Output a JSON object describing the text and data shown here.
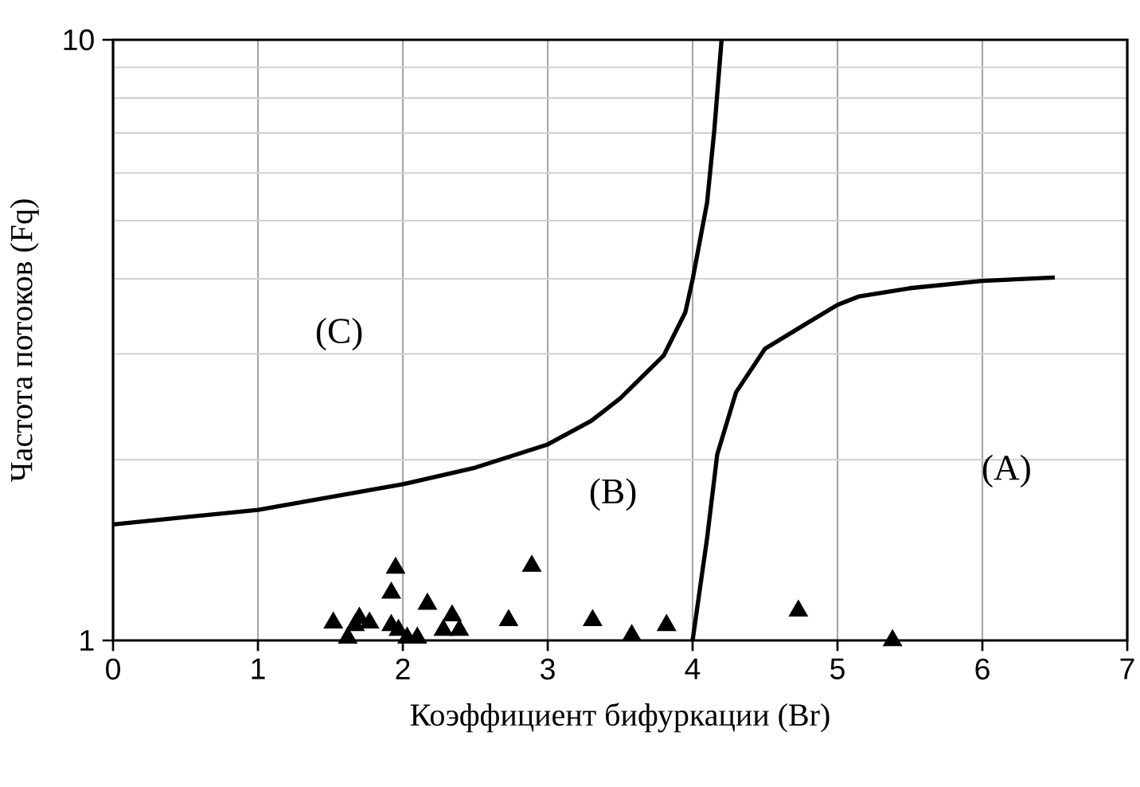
{
  "chart_data": {
    "type": "line",
    "xlabel": "Коэффициент бифуркации (Br)",
    "ylabel": "Частота потоков (Fq)",
    "xlim": [
      0,
      7
    ],
    "xticks": [
      0,
      1,
      2,
      3,
      4,
      5,
      6,
      7
    ],
    "ylim": [
      1,
      10
    ],
    "yticks": [
      1,
      10
    ],
    "log": "y",
    "grid": true,
    "series": [
      {
        "color": "#000000",
        "marker": "none",
        "x": [
          0,
          1,
          2,
          2.5,
          3,
          3.3,
          3.5,
          3.8,
          3.95,
          4.0,
          4.1,
          4.15,
          4.2
        ],
        "values": [
          1.56,
          1.65,
          1.82,
          1.94,
          2.12,
          2.32,
          2.53,
          2.98,
          3.52,
          3.99,
          5.36,
          7.08,
          10
        ]
      },
      {
        "color": "#000000",
        "marker": "none",
        "x": [
          4.0,
          4.1,
          4.17,
          4.3,
          4.5,
          4.75,
          5,
          5.15,
          5.5,
          6,
          6.5
        ],
        "values": [
          1,
          1.48,
          2.04,
          2.59,
          3.06,
          3.33,
          3.62,
          3.74,
          3.86,
          3.97,
          4.02
        ]
      },
      {
        "type": "scatter",
        "color": "#000000",
        "marker": "triangle",
        "x": [
          1.52,
          1.62,
          1.67,
          1.7,
          1.77,
          1.92,
          1.95,
          1.92,
          1.97,
          2.03,
          2.1,
          2.17,
          2.28,
          2.34,
          2.39,
          2.73,
          2.89,
          3.31,
          3.58,
          3.82,
          4.73,
          5.38
        ],
        "values": [
          1.07,
          1.01,
          1.06,
          1.09,
          1.07,
          1.2,
          1.32,
          1.06,
          1.04,
          1.01,
          1.01,
          1.15,
          1.04,
          1.1,
          1.04,
          1.08,
          1.33,
          1.08,
          1.02,
          1.06,
          1.12,
          1.0
        ]
      }
    ],
    "annotations": [
      "(C)",
      "(B)",
      "(A)"
    ]
  }
}
